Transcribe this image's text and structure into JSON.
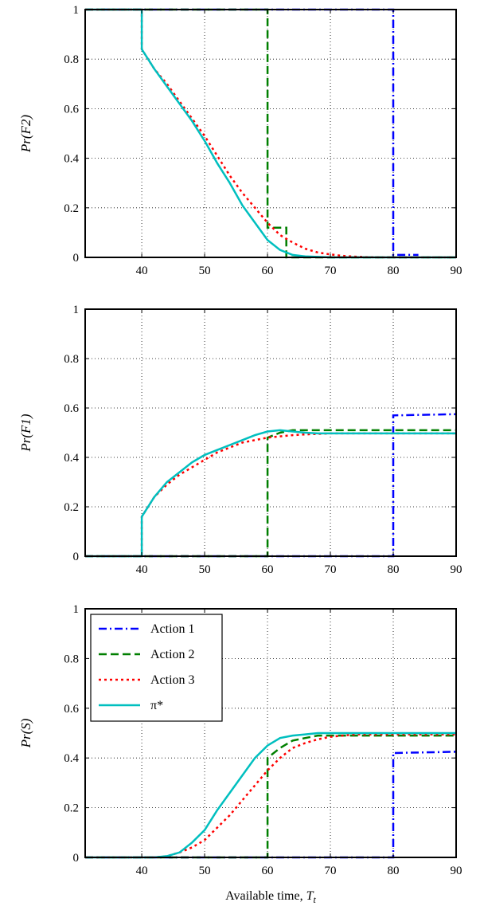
{
  "colors": {
    "action1": "#0000ff",
    "action2": "#007f00",
    "action3": "#ff0000",
    "policy": "#00bfbf"
  },
  "chart_data": [
    {
      "type": "line",
      "ylabel": "Pr(F2)",
      "xlabel": "",
      "xlim": [
        31,
        90
      ],
      "ylim": [
        0,
        1
      ],
      "xticks": [
        40,
        50,
        60,
        70,
        80,
        90
      ],
      "yticks": [
        0,
        0.2,
        0.4,
        0.6,
        0.8,
        1
      ],
      "grid": true,
      "series": [
        {
          "name": "Action 1",
          "style": "dashdot",
          "color": "#0000ff",
          "x": [
            31,
            80,
            80,
            84
          ],
          "y": [
            1,
            1,
            0.01,
            0.01
          ]
        },
        {
          "name": "Action 2",
          "style": "dashed",
          "color": "#007f00",
          "x": [
            31,
            60,
            60,
            63,
            63,
            90
          ],
          "y": [
            1,
            1,
            0.12,
            0.12,
            0.0,
            0.0
          ]
        },
        {
          "name": "Action 3",
          "style": "dotted",
          "color": "#ff0000",
          "x": [
            31,
            40,
            40,
            42,
            44,
            46,
            48,
            50,
            52,
            54,
            56,
            58,
            60,
            62,
            64,
            66,
            68,
            70,
            72,
            74,
            76,
            78,
            80,
            90
          ],
          "y": [
            1,
            1,
            0.84,
            0.76,
            0.7,
            0.63,
            0.56,
            0.49,
            0.41,
            0.33,
            0.26,
            0.2,
            0.14,
            0.09,
            0.06,
            0.035,
            0.02,
            0.012,
            0.006,
            0.003,
            0.001,
            0.0,
            0.0,
            0.0
          ]
        },
        {
          "name": "π*",
          "style": "solid",
          "color": "#00bfbf",
          "x": [
            31,
            40,
            40,
            42,
            44,
            46,
            48,
            50,
            52,
            54,
            56,
            58,
            60,
            62,
            64,
            66,
            68,
            70,
            90
          ],
          "y": [
            1,
            1,
            0.84,
            0.76,
            0.69,
            0.62,
            0.55,
            0.47,
            0.38,
            0.3,
            0.21,
            0.14,
            0.07,
            0.03,
            0.01,
            0.004,
            0.002,
            0.0,
            0.0
          ]
        }
      ]
    },
    {
      "type": "line",
      "ylabel": "Pr(F1)",
      "xlabel": "",
      "xlim": [
        31,
        90
      ],
      "ylim": [
        0,
        1
      ],
      "xticks": [
        40,
        50,
        60,
        70,
        80,
        90
      ],
      "yticks": [
        0,
        0.2,
        0.4,
        0.6,
        0.8,
        1
      ],
      "grid": true,
      "series": [
        {
          "name": "Action 1",
          "style": "dashdot",
          "color": "#0000ff",
          "x": [
            31,
            80,
            80,
            90
          ],
          "y": [
            0,
            0,
            0.57,
            0.575
          ]
        },
        {
          "name": "Action 2",
          "style": "dashed",
          "color": "#007f00",
          "x": [
            31,
            60,
            60,
            62,
            64,
            90
          ],
          "y": [
            0,
            0,
            0.48,
            0.5,
            0.51,
            0.51
          ]
        },
        {
          "name": "Action 3",
          "style": "dotted",
          "color": "#ff0000",
          "x": [
            31,
            40,
            40,
            42,
            44,
            46,
            48,
            50,
            52,
            54,
            56,
            58,
            60,
            62,
            64,
            66,
            68,
            70,
            90
          ],
          "y": [
            0,
            0,
            0.16,
            0.24,
            0.29,
            0.33,
            0.36,
            0.39,
            0.42,
            0.44,
            0.46,
            0.47,
            0.48,
            0.485,
            0.49,
            0.493,
            0.495,
            0.497,
            0.497
          ]
        },
        {
          "name": "π*",
          "style": "solid",
          "color": "#00bfbf",
          "x": [
            31,
            40,
            40,
            42,
            44,
            46,
            48,
            50,
            52,
            54,
            56,
            58,
            60,
            62,
            64,
            66,
            68,
            90
          ],
          "y": [
            0,
            0,
            0.16,
            0.24,
            0.3,
            0.34,
            0.38,
            0.41,
            0.43,
            0.45,
            0.47,
            0.49,
            0.505,
            0.51,
            0.505,
            0.5,
            0.497,
            0.497
          ]
        }
      ]
    },
    {
      "type": "line",
      "ylabel": "Pr(S)",
      "xlabel": "Available time, T_t",
      "xlim": [
        31,
        90
      ],
      "ylim": [
        0,
        1
      ],
      "xticks": [
        40,
        50,
        60,
        70,
        80,
        90
      ],
      "yticks": [
        0,
        0.2,
        0.4,
        0.6,
        0.8,
        1
      ],
      "grid": true,
      "legend": "top-left",
      "series": [
        {
          "name": "Action 1",
          "style": "dashdot",
          "color": "#0000ff",
          "x": [
            31,
            80,
            80,
            90
          ],
          "y": [
            0,
            0,
            0.42,
            0.425
          ]
        },
        {
          "name": "Action 2",
          "style": "dashed",
          "color": "#007f00",
          "x": [
            31,
            60,
            60,
            62,
            64,
            66,
            68,
            90
          ],
          "y": [
            0,
            0,
            0.4,
            0.44,
            0.47,
            0.48,
            0.49,
            0.49
          ]
        },
        {
          "name": "Action 3",
          "style": "dotted",
          "color": "#ff0000",
          "x": [
            31,
            42,
            44,
            46,
            48,
            50,
            52,
            54,
            56,
            58,
            60,
            62,
            64,
            66,
            68,
            70,
            72,
            74,
            90
          ],
          "y": [
            0,
            0,
            0.005,
            0.02,
            0.04,
            0.07,
            0.12,
            0.17,
            0.23,
            0.29,
            0.35,
            0.4,
            0.44,
            0.46,
            0.475,
            0.485,
            0.49,
            0.495,
            0.495
          ]
        },
        {
          "name": "π*",
          "style": "solid",
          "color": "#00bfbf",
          "x": [
            31,
            42,
            44,
            46,
            48,
            50,
            52,
            54,
            56,
            58,
            60,
            62,
            64,
            66,
            68,
            70,
            90
          ],
          "y": [
            0,
            0,
            0.005,
            0.02,
            0.06,
            0.11,
            0.19,
            0.26,
            0.33,
            0.4,
            0.45,
            0.48,
            0.49,
            0.495,
            0.5,
            0.5,
            0.5
          ]
        }
      ]
    }
  ]
}
